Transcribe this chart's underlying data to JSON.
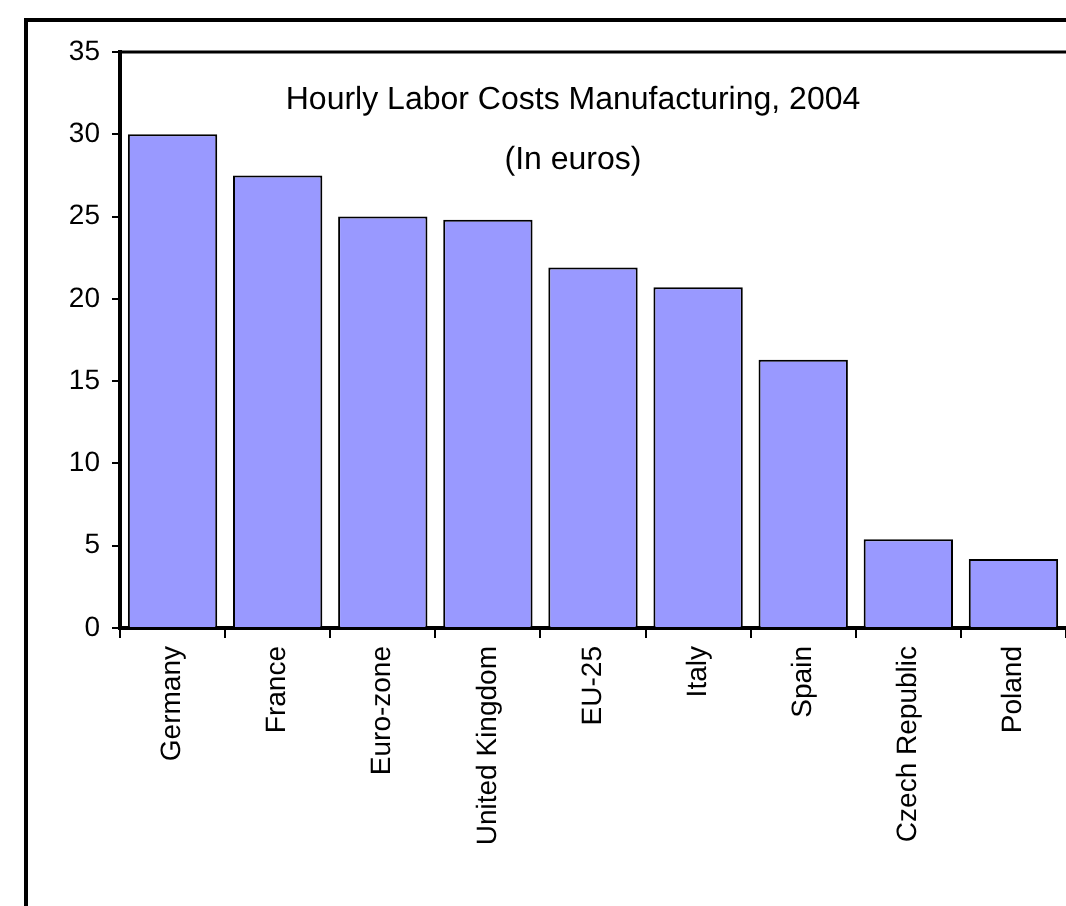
{
  "chart_data": {
    "type": "bar",
    "title": "Hourly Labor Costs Manufacturing, 2004",
    "subtitle": "(In euros)",
    "categories": [
      "Germany",
      "France",
      "Euro-zone",
      "United Kingdom",
      "EU-25",
      "Italy",
      "Spain",
      "Czech Republic",
      "Poland"
    ],
    "values": [
      30.0,
      27.5,
      25.0,
      24.8,
      21.9,
      20.7,
      16.3,
      5.4,
      4.2
    ],
    "color": "#9999ff",
    "ylim": [
      0,
      35
    ],
    "yticks": [
      0,
      5,
      10,
      15,
      20,
      25,
      30,
      35
    ],
    "grid": false,
    "legend": false
  }
}
